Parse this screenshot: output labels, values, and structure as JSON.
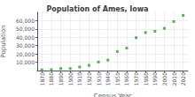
{
  "chart_data": {
    "type": "scatter",
    "title": "Population of Ames, Iowa",
    "xlabel": "Census Year",
    "ylabel": "Population",
    "x": [
      1870,
      1880,
      1890,
      1900,
      1910,
      1920,
      1930,
      1940,
      1950,
      1960,
      1970,
      1980,
      1990,
      2000,
      2010,
      2020
    ],
    "values": [
      835,
      1153,
      2422,
      2422,
      4223,
      6270,
      10261,
      12555,
      22898,
      27003,
      39505,
      45775,
      47198,
      50731,
      58965,
      66258
    ],
    "color": "#2ca02c",
    "marker": "square",
    "xlim": [
      1865,
      2025
    ],
    "xticks": [
      1870,
      1880,
      1890,
      1900,
      1910,
      1920,
      1930,
      1940,
      1950,
      1960,
      1970,
      1980,
      1990,
      2000,
      2010,
      2020
    ],
    "ylim": [
      0,
      70000
    ],
    "yticks": [
      {
        "value": 10000,
        "label": "10,000"
      },
      {
        "value": 20000,
        "label": "20,000"
      },
      {
        "value": 30000,
        "label": "30,000"
      },
      {
        "value": 40000,
        "label": "40,000"
      },
      {
        "value": 50000,
        "label": "50,000"
      },
      {
        "value": 60000,
        "label": "60,000"
      }
    ],
    "grid": true
  }
}
